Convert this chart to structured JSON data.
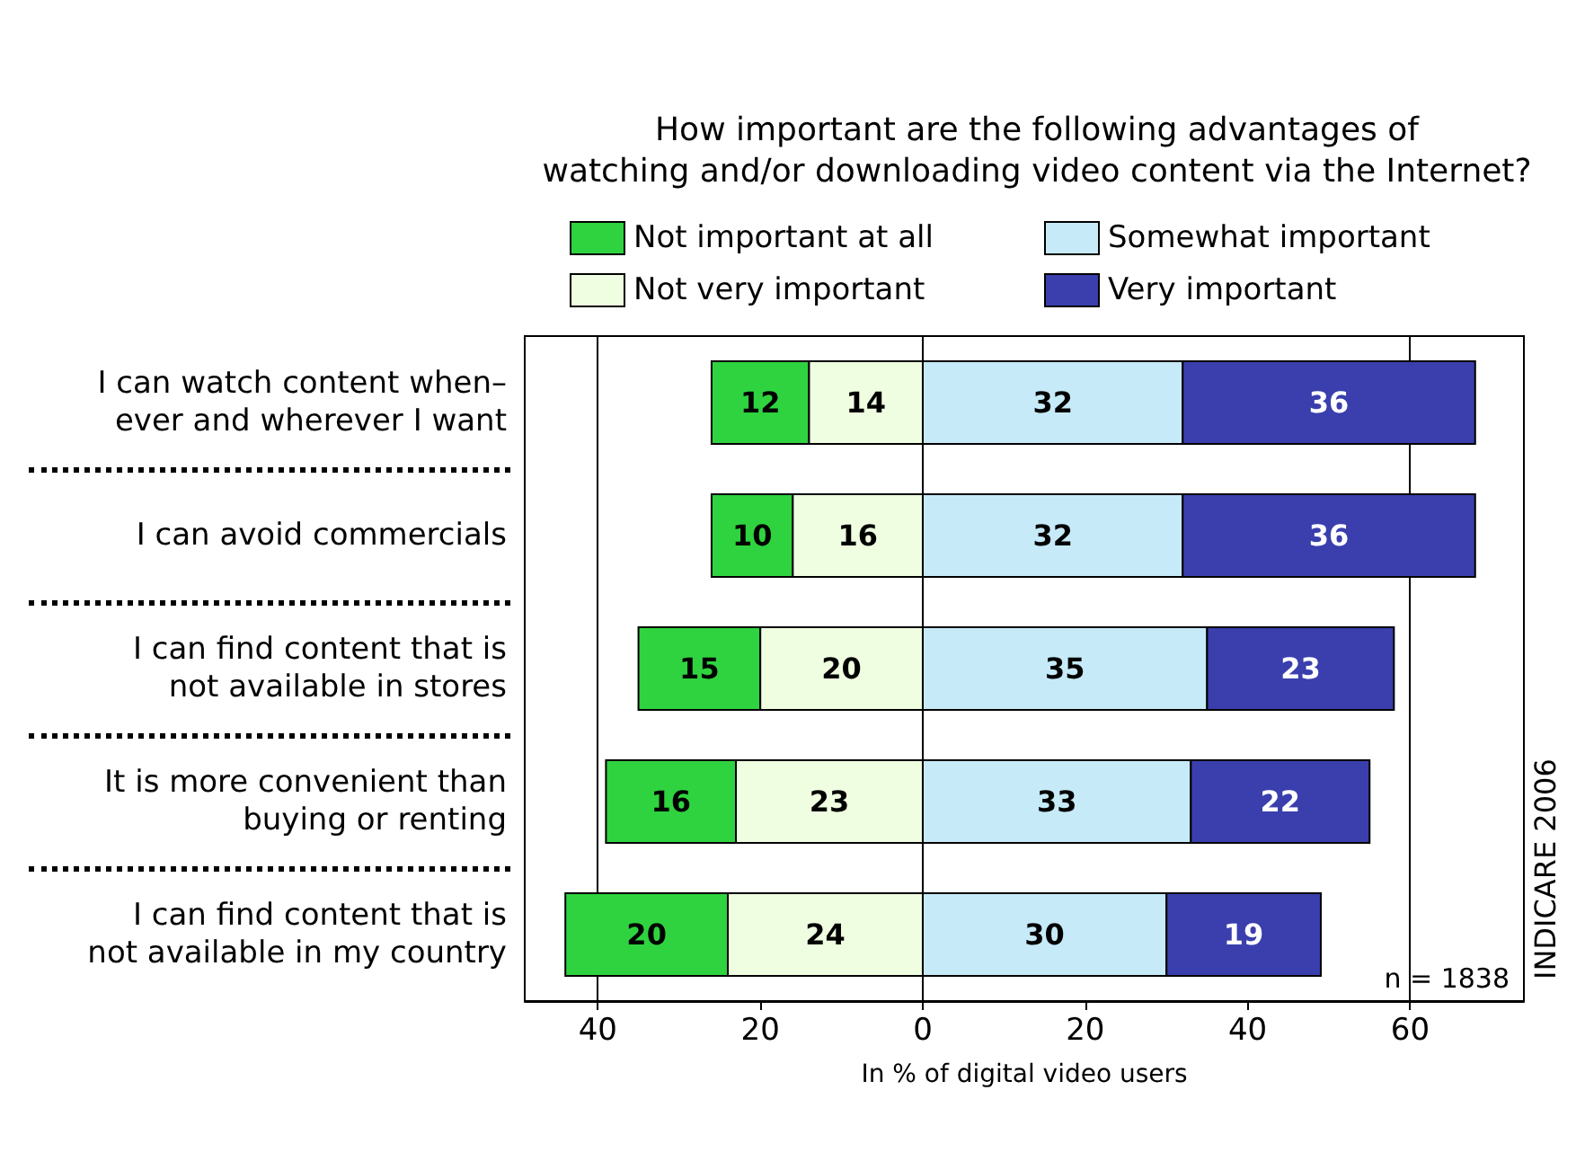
{
  "chart_data": {
    "type": "bar",
    "orientation": "horizontal",
    "title": "How important are the following advantages of\nwatching and/or downloading video content via the Internet?",
    "xlabel": "In % of digital video users",
    "categories": [
      "I can watch content when–\never and wherever I want",
      "I can avoid commercials",
      "I can find content that is\nnot available in stores",
      "It is more convenient than\nbuying or renting",
      "I can find content that is\nnot available in my country"
    ],
    "series": [
      {
        "name": "Not important at all",
        "color": "#2fd33f",
        "values": [
          12,
          10,
          15,
          16,
          20
        ],
        "base": [
          -26,
          -26,
          -35,
          -39,
          -44
        ]
      },
      {
        "name": "Not very important",
        "color": "#effde0",
        "values": [
          14,
          16,
          20,
          23,
          24
        ],
        "base": [
          -14,
          -16,
          -20,
          -23,
          -24
        ]
      },
      {
        "name": "Somewhat important",
        "color": "#c6eaf8",
        "values": [
          32,
          32,
          35,
          33,
          30
        ],
        "base": [
          0,
          0,
          0,
          0,
          0
        ]
      },
      {
        "name": "Very important",
        "color": "#3a3fad",
        "values": [
          36,
          36,
          23,
          22,
          19
        ],
        "base": [
          32,
          32,
          35,
          33,
          30
        ]
      }
    ],
    "xlim": [
      -49,
      74
    ],
    "xticks": [
      {
        "value": -40,
        "label": "40"
      },
      {
        "value": -20,
        "label": "20"
      },
      0,
      20,
      40,
      60
    ],
    "ref_lines": [
      {
        "axis": "x",
        "value": -40,
        "label": null
      },
      {
        "axis": "x",
        "value": 0,
        "label": null
      },
      {
        "axis": "x",
        "value": 60,
        "label": null
      }
    ],
    "data_labels": true,
    "legend": "top",
    "annotations": [
      "n = 1838",
      "INDICARE 2006"
    ]
  }
}
